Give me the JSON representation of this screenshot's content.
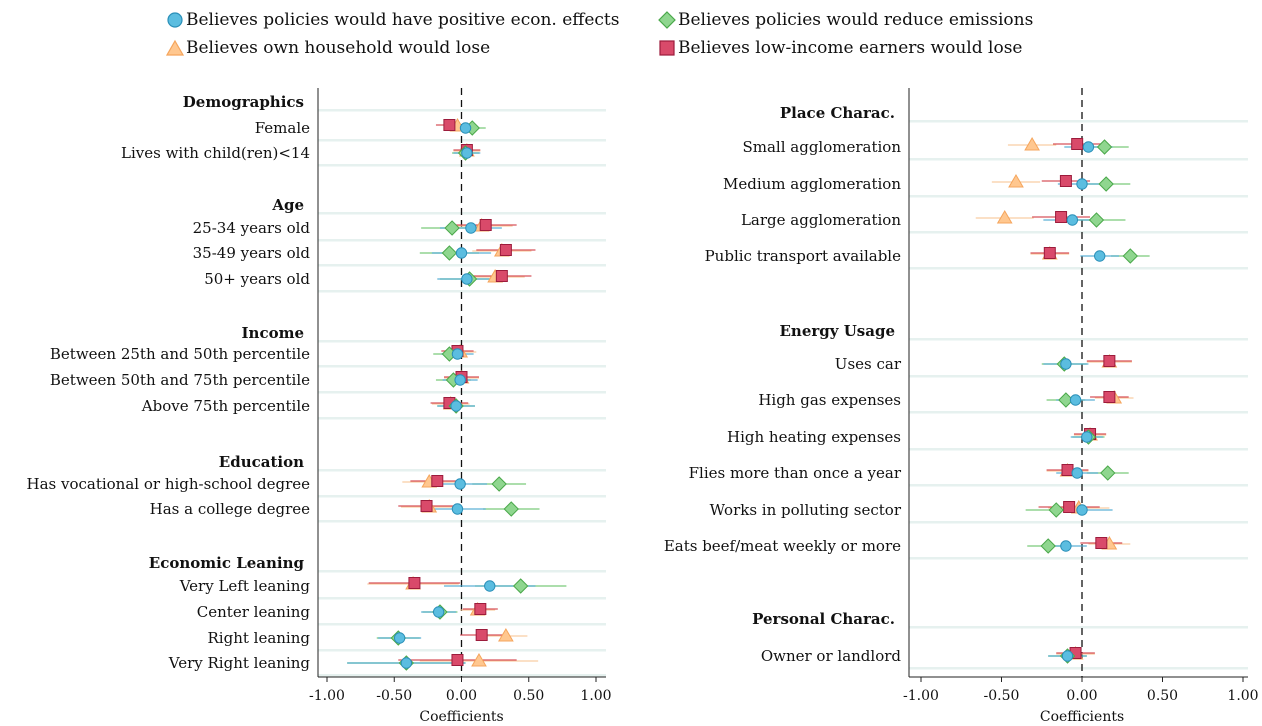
{
  "legend": {
    "items": [
      {
        "key": "econ",
        "label": "Believes policies would have positive econ. effects",
        "shape": "circle",
        "fill": "#5bbde0",
        "stroke": "#2a8fb8"
      },
      {
        "key": "emis",
        "label": "Believes policies would reduce emissions",
        "shape": "diamond",
        "fill": "#8fd68f",
        "stroke": "#4aa84a"
      },
      {
        "key": "hh",
        "label": "Believes own household would lose",
        "shape": "triangle",
        "fill": "#ffc78f",
        "stroke": "#f5a55c"
      },
      {
        "key": "low",
        "label": "Believes low-income earners would lose",
        "shape": "square",
        "fill": "#d94a6a",
        "stroke": "#9c1c3c"
      }
    ]
  },
  "colors": {
    "econ": "#5bbde0",
    "emis": "#8fd68f",
    "hh": "#ffc78f",
    "low": "#d94a6a",
    "ci_econ": "#4aaad2",
    "ci_emis": "#6cc46c",
    "ci_hh": "#f8c89a",
    "ci_low": "#d4414a",
    "band": "#e6f1ef"
  },
  "chart_data": [
    {
      "type": "scatter",
      "xlabel": "Coefficients",
      "xlim": [
        -1.0,
        1.0
      ],
      "xticks": [
        "-1.00",
        "-0.50",
        "0.00",
        "0.50",
        "1.00"
      ],
      "xtick_values": [
        -1.0,
        -0.5,
        0.0,
        0.5,
        1.0
      ],
      "groups": [
        {
          "title": "Demographics",
          "rows": [
            {
              "label": "Female",
              "econ": 0.03,
              "emis": 0.08,
              "hh": -0.03,
              "low": -0.09,
              "ci": 0.1
            },
            {
              "label": "Lives with child(ren)<14",
              "econ": 0.04,
              "emis": 0.03,
              "hh": 0.04,
              "low": 0.04,
              "ci": 0.1
            }
          ]
        },
        {
          "title": "Age",
          "rows": [
            {
              "label": "25-34 years old",
              "econ": 0.07,
              "emis": -0.07,
              "hh": 0.15,
              "low": 0.18,
              "ci": 0.23
            },
            {
              "label": "35-49 years old",
              "econ": 0.0,
              "emis": -0.09,
              "hh": 0.3,
              "low": 0.33,
              "ci": 0.22
            },
            {
              "label": "50+ years old",
              "econ": 0.04,
              "emis": 0.06,
              "hh": 0.25,
              "low": 0.3,
              "ci": 0.22
            }
          ]
        },
        {
          "title": "Income",
          "rows": [
            {
              "label": "Between 25th and 50th percentile",
              "econ": -0.03,
              "emis": -0.09,
              "hh": -0.01,
              "low": -0.03,
              "ci": 0.12
            },
            {
              "label": "Between 50th and 75th percentile",
              "econ": -0.01,
              "emis": -0.06,
              "hh": 0.0,
              "low": 0.0,
              "ci": 0.13
            },
            {
              "label": "Above 75th percentile",
              "econ": -0.04,
              "emis": -0.04,
              "hh": -0.08,
              "low": -0.09,
              "ci": 0.14
            }
          ]
        },
        {
          "title": "Education",
          "rows": [
            {
              "label": "Has vocational or high-school degree",
              "econ": -0.01,
              "emis": 0.28,
              "hh": -0.24,
              "low": -0.18,
              "ci": 0.2
            },
            {
              "label": "Has a college degree",
              "econ": -0.03,
              "emis": 0.37,
              "hh": -0.24,
              "low": -0.26,
              "ci": 0.21
            }
          ]
        },
        {
          "title": "Economic Leaning",
          "rows": [
            {
              "label": "Very Left leaning",
              "econ": 0.21,
              "emis": 0.44,
              "hh": -0.36,
              "low": -0.35,
              "ci": 0.34
            },
            {
              "label": "Center leaning",
              "econ": -0.17,
              "emis": -0.16,
              "hh": 0.12,
              "low": 0.14,
              "ci": 0.13
            },
            {
              "label": "Right leaning",
              "econ": -0.46,
              "emis": -0.47,
              "hh": 0.33,
              "low": 0.15,
              "ci": 0.16
            },
            {
              "label": "Very Right leaning",
              "econ": -0.41,
              "emis": -0.41,
              "hh": 0.13,
              "low": -0.03,
              "ci": 0.44
            }
          ]
        }
      ]
    },
    {
      "type": "scatter",
      "xlabel": "Coefficients",
      "xlim": [
        -1.0,
        1.0
      ],
      "xticks": [
        "-1.00",
        "-0.50",
        "0.00",
        "0.50",
        "1.00"
      ],
      "xtick_values": [
        -1.0,
        -0.5,
        0.0,
        0.5,
        1.0
      ],
      "groups": [
        {
          "title": "Place Charac.",
          "rows": [
            {
              "label": "Small agglomeration",
              "econ": 0.04,
              "emis": 0.14,
              "hh": -0.31,
              "low": -0.03,
              "ci": 0.15
            },
            {
              "label": "Medium agglomeration",
              "econ": 0.0,
              "emis": 0.15,
              "hh": -0.41,
              "low": -0.1,
              "ci": 0.15
            },
            {
              "label": "Large agglomeration",
              "econ": -0.06,
              "emis": 0.09,
              "hh": -0.48,
              "low": -0.13,
              "ci": 0.18
            },
            {
              "label": "Public transport available",
              "econ": 0.11,
              "emis": 0.3,
              "hh": -0.2,
              "low": -0.2,
              "ci": 0.12
            }
          ]
        },
        {
          "title": "Energy Usage",
          "rows": [
            {
              "label": "Uses car",
              "econ": -0.1,
              "emis": -0.11,
              "hh": 0.17,
              "low": 0.17,
              "ci": 0.14
            },
            {
              "label": "High gas expenses",
              "econ": -0.04,
              "emis": -0.1,
              "hh": 0.2,
              "low": 0.17,
              "ci": 0.12
            },
            {
              "label": "High heating expenses",
              "econ": 0.03,
              "emis": 0.04,
              "hh": 0.05,
              "low": 0.05,
              "ci": 0.1
            },
            {
              "label": "Flies more than once a year",
              "econ": -0.03,
              "emis": 0.16,
              "hh": -0.09,
              "low": -0.09,
              "ci": 0.13
            },
            {
              "label": "Works in polluting sector",
              "econ": 0.0,
              "emis": -0.16,
              "hh": -0.02,
              "low": -0.08,
              "ci": 0.19
            },
            {
              "label": "Eats beef/meat weekly or more",
              "econ": -0.1,
              "emis": -0.21,
              "hh": 0.17,
              "low": 0.12,
              "ci": 0.13
            }
          ]
        },
        {
          "title": "Personal Charac.",
          "rows": [
            {
              "label": "Owner or landlord",
              "econ": -0.09,
              "emis": -0.09,
              "hh": -0.04,
              "low": -0.04,
              "ci": 0.12
            }
          ]
        }
      ]
    }
  ]
}
